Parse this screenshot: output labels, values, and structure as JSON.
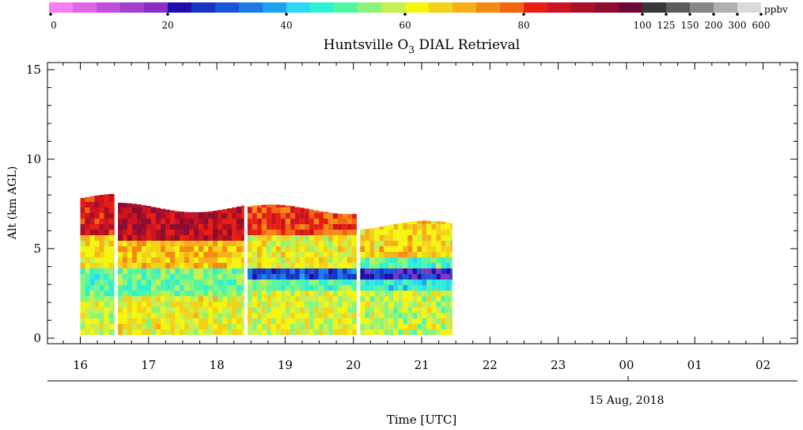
{
  "chart_data": {
    "type": "heatmap",
    "title": "Huntsville O",
    "title_sub": "3",
    "title_tail": " DIAL Retrieval",
    "ylabel": "Alt (km AGL)",
    "xlabel": "Time [UTC]",
    "date_label": "15 Aug, 2018",
    "ylim": [
      0,
      15.5
    ],
    "y_ticks": [
      "0",
      "5",
      "10",
      "15"
    ],
    "x_ticks": [
      "16",
      "17",
      "18",
      "19",
      "20",
      "21",
      "22",
      "23",
      "00",
      "01",
      "02"
    ],
    "colorbar": {
      "unit": "ppbv",
      "tick_labels": [
        "0",
        "20",
        "40",
        "60",
        "80",
        "100",
        "125",
        "150",
        "200",
        "300",
        "600"
      ],
      "colors": [
        "#f57ff5",
        "#e066e8",
        "#c24fdc",
        "#a43fcf",
        "#8a2dc4",
        "#1f0fa8",
        "#1636c2",
        "#1a55d6",
        "#1d7ae6",
        "#1ea2f0",
        "#2ad8f5",
        "#2ff0d0",
        "#55f5a6",
        "#8af57a",
        "#c4f052",
        "#f5f50f",
        "#f5d21a",
        "#f5b01a",
        "#f58a14",
        "#f06414",
        "#e61e14",
        "#cc1420",
        "#a81028",
        "#8c0c32",
        "#6e0838",
        "#383838",
        "#5c5c5c",
        "#868686",
        "#b0b0b0",
        "#dadada"
      ]
    },
    "series": [
      {
        "start": 16.0,
        "end": 16.5,
        "top_km": 7.8,
        "layers": [
          {
            "from": 0,
            "to": 2.3,
            "ppbv": 58
          },
          {
            "from": 2.3,
            "to": 3.8,
            "ppbv": 50
          },
          {
            "from": 3.8,
            "to": 5.5,
            "ppbv": 64
          },
          {
            "from": 5.5,
            "to": 7.8,
            "ppbv": 84
          }
        ]
      },
      {
        "start": 16.55,
        "end": 18.4,
        "top_km": 7.3,
        "layers": [
          {
            "from": 0,
            "to": 2.3,
            "ppbv": 62
          },
          {
            "from": 2.3,
            "to": 3.8,
            "ppbv": 52
          },
          {
            "from": 3.8,
            "to": 5.3,
            "ppbv": 68
          },
          {
            "from": 5.3,
            "to": 7.3,
            "ppbv": 88
          }
        ]
      },
      {
        "start": 18.45,
        "end": 20.05,
        "top_km": 7.2,
        "layers": [
          {
            "from": 0,
            "to": 2.5,
            "ppbv": 60
          },
          {
            "from": 2.5,
            "to": 3.0,
            "ppbv": 50
          },
          {
            "from": 3.0,
            "to": 3.8,
            "ppbv": 30
          },
          {
            "from": 3.8,
            "to": 5.5,
            "ppbv": 62
          },
          {
            "from": 5.5,
            "to": 7.2,
            "ppbv": 80
          }
        ]
      },
      {
        "start": 20.1,
        "end": 21.45,
        "top_km": 6.3,
        "layers": [
          {
            "from": 0,
            "to": 2.5,
            "ppbv": 58
          },
          {
            "from": 2.5,
            "to": 3.0,
            "ppbv": 44
          },
          {
            "from": 3.0,
            "to": 3.6,
            "ppbv": 24
          },
          {
            "from": 3.6,
            "to": 4.5,
            "ppbv": 50
          },
          {
            "from": 4.5,
            "to": 6.3,
            "ppbv": 66
          }
        ]
      }
    ]
  }
}
